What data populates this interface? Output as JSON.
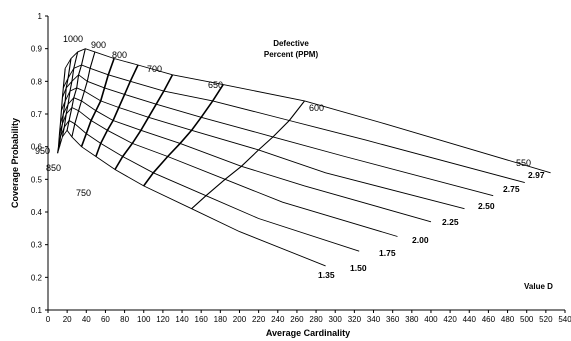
{
  "chart_data": {
    "type": "line",
    "xlabel": "Average Cardinality",
    "ylabel": "Coverage Probability",
    "xlim": [
      0,
      540
    ],
    "ylim": [
      0.1,
      1
    ],
    "x_ticks": [
      0,
      20,
      40,
      60,
      80,
      100,
      120,
      140,
      160,
      180,
      200,
      220,
      240,
      260,
      280,
      300,
      320,
      340,
      360,
      380,
      400,
      420,
      440,
      460,
      480,
      500,
      520,
      540
    ],
    "x_tick_labels": [
      "0",
      "20",
      "40",
      "60",
      "80",
      "100",
      "120",
      "140",
      "160",
      "180",
      "200",
      "220",
      "240",
      "260",
      "280",
      "300",
      "320",
      "340",
      "360",
      "380",
      "400",
      "420",
      "440",
      "460",
      "480",
      "500",
      "520",
      "540"
    ],
    "y_ticks": [
      0.1,
      0.2,
      0.3,
      0.4,
      0.5,
      0.6,
      0.7,
      0.8,
      0.9,
      1
    ],
    "y_tick_labels": [
      "0.1",
      "0.2",
      "0.3",
      "0.4",
      "0.5",
      "0.6",
      "0.7",
      "0.8",
      "0.9",
      "1"
    ],
    "grid": false,
    "annotation_defective": [
      "Defective",
      "Percent (PPM)"
    ],
    "annotation_value_d": "Value D",
    "ppm_levels": [
      "1000",
      "950",
      "900",
      "850",
      "800",
      "750",
      "700",
      "650",
      "600",
      "550"
    ],
    "ppm_label_order_top": [
      "1000",
      "900",
      "800",
      "700",
      "650",
      "600",
      "550"
    ],
    "ppm_label_order_bottom": [
      "950",
      "850",
      "750"
    ],
    "d_levels": [
      "1.35",
      "1.50",
      "1.75",
      "2.00",
      "2.25",
      "2.50",
      "2.75",
      "2.97"
    ],
    "d_values": [
      1.35,
      1.5,
      1.75,
      2.0,
      2.25,
      2.5,
      2.75,
      2.97
    ],
    "ppm_values": [
      1000,
      950,
      900,
      850,
      800,
      750,
      700,
      650,
      600,
      550
    ],
    "constant_d_curves": [
      {
        "d": "1.35",
        "x": [
          10,
          12,
          15,
          20,
          25,
          35,
          50,
          70,
          100,
          150,
          200,
          290
        ],
        "y": [
          0.58,
          0.6,
          0.63,
          0.65,
          0.63,
          0.6,
          0.57,
          0.53,
          0.48,
          0.41,
          0.34,
          0.235
        ]
      },
      {
        "d": "1.50",
        "x": [
          11,
          13,
          17,
          22,
          28,
          40,
          55,
          78,
          110,
          165,
          220,
          325
        ],
        "y": [
          0.6,
          0.63,
          0.66,
          0.68,
          0.67,
          0.64,
          0.61,
          0.57,
          0.52,
          0.45,
          0.38,
          0.28
        ]
      },
      {
        "d": "1.75",
        "x": [
          12,
          15,
          19,
          25,
          32,
          45,
          62,
          88,
          125,
          185,
          245,
          365
        ],
        "y": [
          0.64,
          0.67,
          0.7,
          0.72,
          0.71,
          0.68,
          0.65,
          0.61,
          0.57,
          0.5,
          0.43,
          0.325
        ]
      },
      {
        "d": "2.00",
        "x": [
          13,
          16,
          21,
          27,
          35,
          50,
          68,
          97,
          138,
          202,
          268,
          400
        ],
        "y": [
          0.67,
          0.7,
          0.73,
          0.75,
          0.74,
          0.71,
          0.68,
          0.65,
          0.61,
          0.54,
          0.48,
          0.37
        ]
      },
      {
        "d": "2.25",
        "x": [
          14,
          18,
          23,
          30,
          38,
          55,
          74,
          105,
          150,
          220,
          290,
          435
        ],
        "y": [
          0.71,
          0.74,
          0.77,
          0.78,
          0.77,
          0.74,
          0.72,
          0.69,
          0.65,
          0.59,
          0.52,
          0.41
        ]
      },
      {
        "d": "2.50",
        "x": [
          15,
          19,
          25,
          32,
          41,
          59,
          80,
          113,
          160,
          235,
          310,
          465
        ],
        "y": [
          0.75,
          0.78,
          0.8,
          0.82,
          0.8,
          0.78,
          0.76,
          0.73,
          0.69,
          0.63,
          0.57,
          0.45
        ]
      },
      {
        "d": "2.75",
        "x": [
          16,
          21,
          27,
          35,
          44,
          63,
          86,
          121,
          172,
          252,
          332,
          498
        ],
        "y": [
          0.78,
          0.81,
          0.84,
          0.85,
          0.84,
          0.82,
          0.8,
          0.77,
          0.74,
          0.68,
          0.62,
          0.49
        ]
      },
      {
        "d": "2.97",
        "x": [
          18,
          24,
          31,
          39,
          49,
          69,
          94,
          130,
          183,
          268,
          352,
          525
        ],
        "y": [
          0.84,
          0.87,
          0.89,
          0.9,
          0.89,
          0.87,
          0.85,
          0.82,
          0.79,
          0.74,
          0.67,
          0.52
        ]
      }
    ],
    "constant_ppm_curves": [
      {
        "ppm": "1000",
        "x": [
          10,
          11,
          12,
          13,
          14,
          15,
          16,
          18
        ],
        "y": [
          0.58,
          0.6,
          0.64,
          0.67,
          0.71,
          0.75,
          0.78,
          0.84
        ]
      },
      {
        "ppm": "950",
        "x": [
          12,
          13,
          15,
          16,
          18,
          19,
          21,
          24
        ],
        "y": [
          0.6,
          0.63,
          0.67,
          0.7,
          0.74,
          0.78,
          0.81,
          0.87
        ]
      },
      {
        "ppm": "900",
        "x": [
          15,
          17,
          19,
          21,
          23,
          25,
          27,
          31
        ],
        "y": [
          0.63,
          0.66,
          0.7,
          0.73,
          0.77,
          0.8,
          0.84,
          0.89
        ]
      },
      {
        "ppm": "850",
        "x": [
          20,
          22,
          25,
          27,
          30,
          32,
          35,
          39
        ],
        "y": [
          0.65,
          0.68,
          0.72,
          0.75,
          0.78,
          0.82,
          0.85,
          0.9
        ]
      },
      {
        "ppm": "800",
        "x": [
          25,
          28,
          32,
          35,
          38,
          41,
          44,
          49
        ],
        "y": [
          0.63,
          0.67,
          0.71,
          0.74,
          0.77,
          0.8,
          0.84,
          0.89
        ]
      },
      {
        "ppm": "750",
        "x": [
          35,
          40,
          45,
          50,
          55,
          59,
          63,
          69
        ],
        "y": [
          0.6,
          0.64,
          0.68,
          0.71,
          0.74,
          0.78,
          0.82,
          0.87
        ]
      },
      {
        "ppm": "700",
        "x": [
          50,
          55,
          62,
          68,
          74,
          80,
          86,
          94
        ],
        "y": [
          0.57,
          0.61,
          0.65,
          0.68,
          0.72,
          0.76,
          0.8,
          0.85
        ]
      },
      {
        "ppm": "650",
        "x": [
          70,
          78,
          88,
          97,
          105,
          113,
          121,
          130
        ],
        "y": [
          0.53,
          0.57,
          0.61,
          0.65,
          0.69,
          0.73,
          0.77,
          0.82
        ]
      },
      {
        "ppm": "600",
        "x": [
          100,
          110,
          125,
          138,
          150,
          160,
          172,
          183
        ],
        "y": [
          0.48,
          0.52,
          0.57,
          0.61,
          0.65,
          0.69,
          0.74,
          0.79
        ]
      },
      {
        "ppm": "550",
        "x": [
          150,
          165,
          185,
          202,
          220,
          235,
          252,
          268
        ],
        "y": [
          0.41,
          0.45,
          0.5,
          0.54,
          0.59,
          0.63,
          0.68,
          0.74
        ]
      }
    ]
  }
}
